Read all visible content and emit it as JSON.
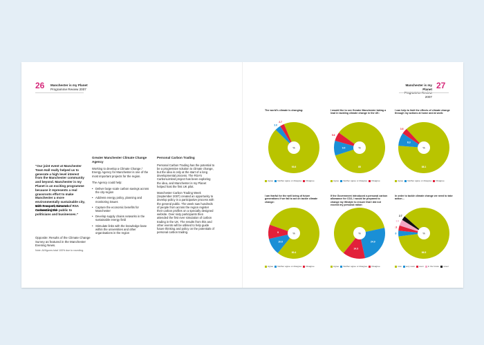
{
  "left_page": {
    "number": "26",
    "title": "Manchester is my Planet",
    "subtitle": "Programme Review 2007"
  },
  "right_page": {
    "number": "27",
    "title": "Manchester is my Planet",
    "subtitle": "Programme Review 2007"
  },
  "quote": {
    "text": "“Our joint event at Manchester Town Hall really helped us to generate a high level interest from the Manchester community and beyond. Manchester is my Planet is an exciting programme because it represents a real grassroots effort to make Manchester a more environmentally sustainable city, with a superb network connecting the public to politicians and businesses.”",
    "attribution": "Matt Prescott, Director of RSA CarbonLimited"
  },
  "caption": "Opposite: Results of the Climate Change Survey as featured in the Manchester Evening News.",
  "note": "Note: All figures total 100% due to rounding.",
  "agency": {
    "heading": "Greater Manchester Climate Change Agency",
    "intro": "Working to develop a Climate Change / Energy Agency for Manchester is one of the most important projects for the region.",
    "lead": "The Agency could help:",
    "bullets": [
      "Deliver large scale carbon savings across the city-region",
      "Address energy policy, planning and monitoring issues",
      "Capture the economic benefits for Manchester",
      "Develop supply chains networks in the sustainable energy field",
      "Stimulate links with the knowledge base within the universities and other organisations in the region"
    ]
  },
  "trading": {
    "heading": "Personal Carbon Trading",
    "p1": "Personal Carbon Trading has the potential to be a progressive solution to climate change, but the idea is only at the start of a long developmental process. The RSA’s CarbonLimited project has been exploring the idea, and Manchester is my Planet helped host the first UK pilot.",
    "p2": "Manchester Carbon Trading Week (September 2007) created an opportunity to develop policy in a participative process with the general public. The week saw hundreds of people from across the region register their carbon profiles on a specially designed website. Over sixty participants then attended the first ever simulation of carbon trading in the UK. The results from this and other events will be utilised to help guide future thinking and policy on the potentials of personal carbon trading."
  },
  "colors": {
    "agree": "#b9c400",
    "neither": "#1a8fd6",
    "disagree": "#e2203a",
    "very_worried": "#f2a6c3",
    "not_worried": "#111111",
    "center": "#ffffff"
  },
  "chart_data": [
    {
      "type": "pie",
      "title": "The world’s climate is changing:",
      "center_label": "%",
      "labels": [
        "Agree",
        "Neither agree or disagree",
        "Disagree"
      ],
      "values": [
        93.6,
        3.6,
        2.7
      ],
      "value_labels": [
        "93.6",
        "3.6",
        "2.7"
      ],
      "legend": [
        "Agree",
        "Neither agree or disagree",
        "Disagree"
      ]
    },
    {
      "type": "pie",
      "title": "I would like to see Greater Manchester taking a lead in tackling climate change in the UK:",
      "center_label": "%",
      "labels": [
        "Agree",
        "Neither agree or disagree",
        "Disagree"
      ],
      "values": [
        85,
        9.4,
        5.6
      ],
      "value_labels": [
        "85",
        "9.4",
        "5.6"
      ],
      "legend": [
        "Agree",
        "Neither agree or disagree",
        "Disagree"
      ]
    },
    {
      "type": "pie",
      "title": "I can help to limit the effects of climate change through my actions at home and at work:",
      "center_label": "%",
      "labels": [
        "Agree",
        "Neither agree or disagree",
        "Disagree"
      ],
      "values": [
        88.1,
        8.3,
        3.6
      ],
      "value_labels": [
        "88.1",
        "8.3",
        "3.6"
      ],
      "legend": [
        "Agree",
        "Neither agree or disagree",
        "Disagree"
      ]
    },
    {
      "type": "pie",
      "title": "I am fearful for the well being of future generations if we fail to act on tackle climate change:",
      "center_label": "%",
      "labels": [
        "Agree",
        "Neither agree or disagree",
        "Disagree"
      ],
      "values": [
        80.4,
        10.6,
        9
      ],
      "value_labels": [
        "80.4",
        "10.6",
        "9"
      ],
      "legend": [
        "Agree",
        "Neither agree or disagree",
        "Disagree"
      ]
    },
    {
      "type": "pie",
      "title": "If the Government introduced a personal carbon allowance for CO2, I would be prepared to change my lifestyle to ensure that I did not exceed my personal ration:",
      "center_label": "%",
      "labels": [
        "Agree",
        "Neither agree or disagree",
        "Disagree"
      ],
      "values": [
        60.8,
        24.9,
        14.3
      ],
      "value_labels": [
        "60.8",
        "24.9",
        "14.3"
      ],
      "legend": [
        "Agree",
        "Neither agree or disagree",
        "Disagree"
      ]
    },
    {
      "type": "pie",
      "title": "In order to tackle climate change we need to take action…",
      "center_label": "%",
      "labels": [
        "Now",
        "Very soon",
        "Soon",
        "In the future",
        "Never"
      ],
      "values": [
        86.5,
        3.6,
        3.3,
        3.9,
        2.7
      ],
      "value_labels": [
        "86.5",
        "3.6",
        "3.3",
        "3.9",
        "2.7"
      ],
      "legend": [
        "now",
        "very soon",
        "soon",
        "in the future",
        "never"
      ]
    }
  ]
}
